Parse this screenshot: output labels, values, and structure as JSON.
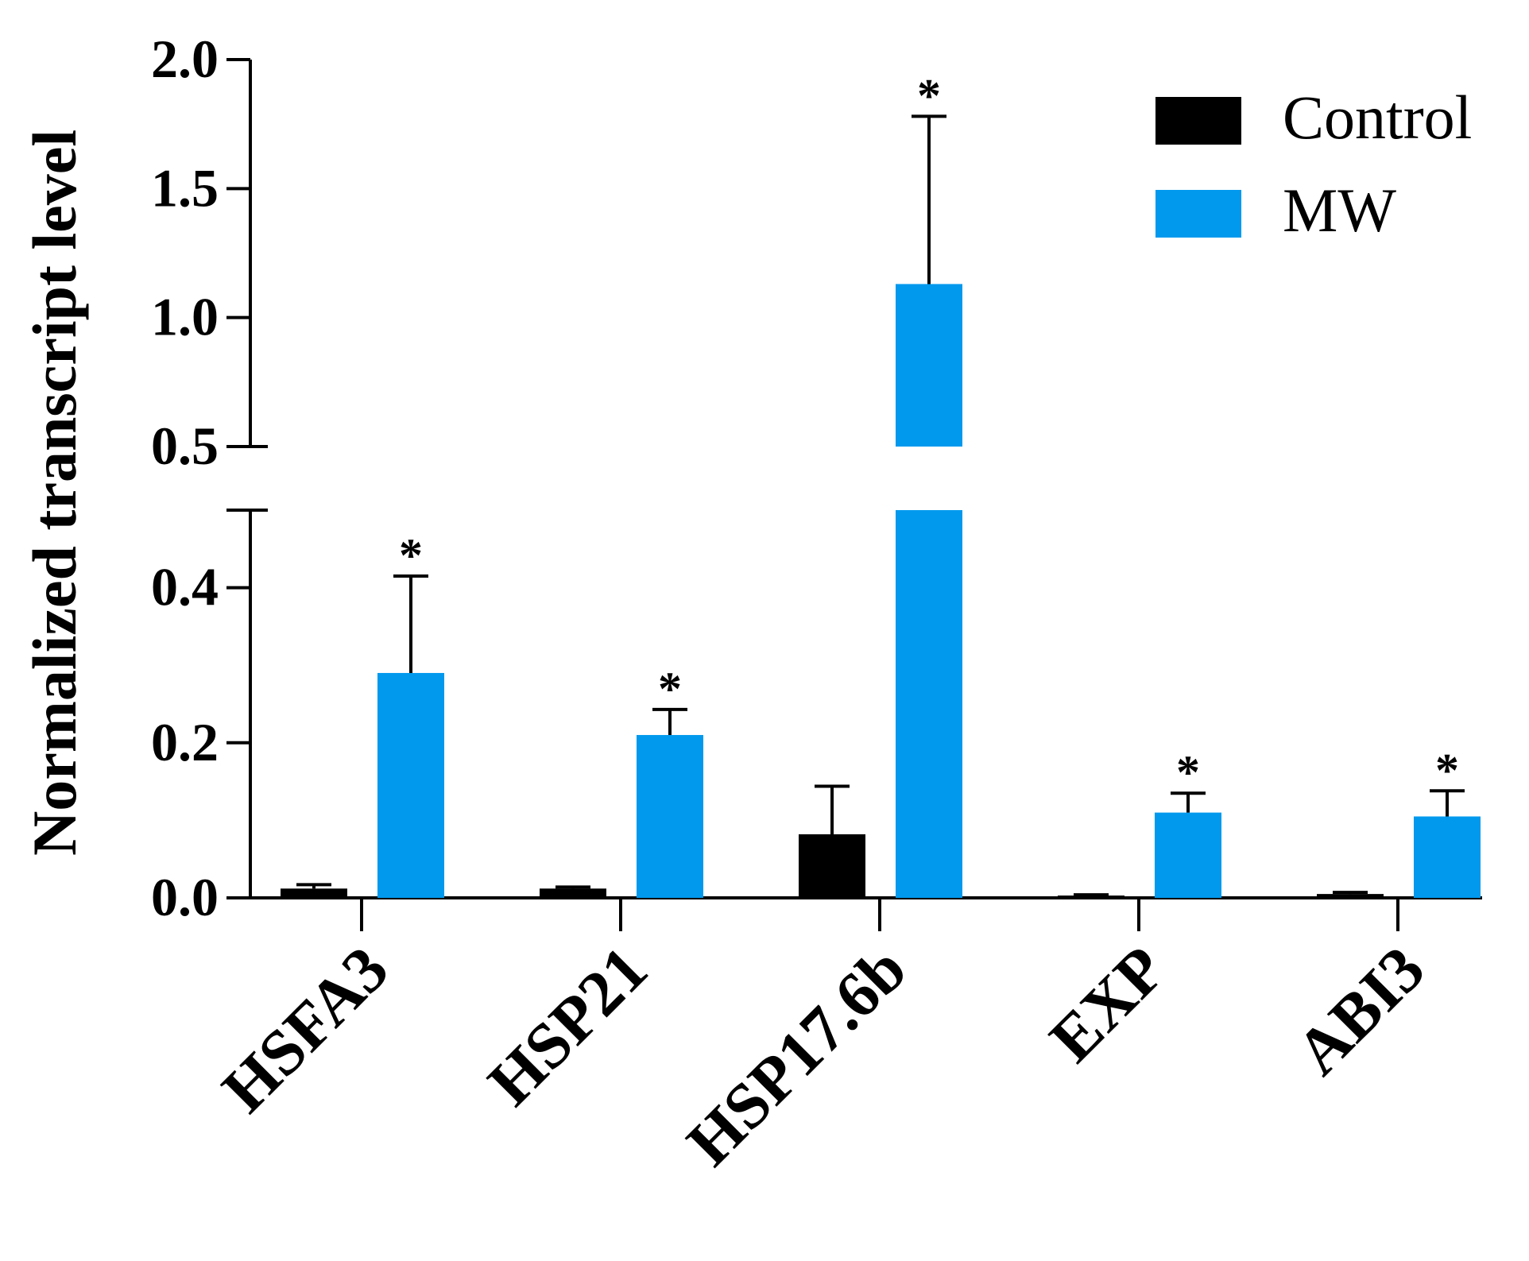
{
  "chart_data": {
    "type": "bar",
    "title": "",
    "xlabel": "",
    "ylabel": "Normalized transcript level",
    "categories": [
      "HSFA3",
      "HSP21",
      "HSP17.6b",
      "EXP",
      "ABI3"
    ],
    "series": [
      {
        "name": "Control",
        "color": "#000000",
        "values": [
          0.012,
          0.012,
          0.082,
          0.003,
          0.005
        ],
        "errors": [
          0.005,
          0.002,
          0.062,
          0.001,
          0.002
        ],
        "significant": [
          false,
          false,
          false,
          false,
          false
        ]
      },
      {
        "name": "MW",
        "color": "#0099EE",
        "values": [
          0.29,
          0.21,
          1.13,
          0.11,
          0.105
        ],
        "errors": [
          0.125,
          0.033,
          0.65,
          0.025,
          0.033
        ],
        "significant": [
          true,
          true,
          true,
          true,
          true
        ]
      }
    ],
    "significance_marker": "*",
    "axis_break": {
      "lower": [
        0,
        0.5
      ],
      "upper": [
        0.5,
        2.0
      ]
    },
    "lower_ticks": [
      "0.0",
      "0.2",
      "0.4"
    ],
    "upper_ticks": [
      "0.5",
      "1.0",
      "1.5",
      "2.0"
    ],
    "grid": false,
    "legend_position": "top-right"
  }
}
